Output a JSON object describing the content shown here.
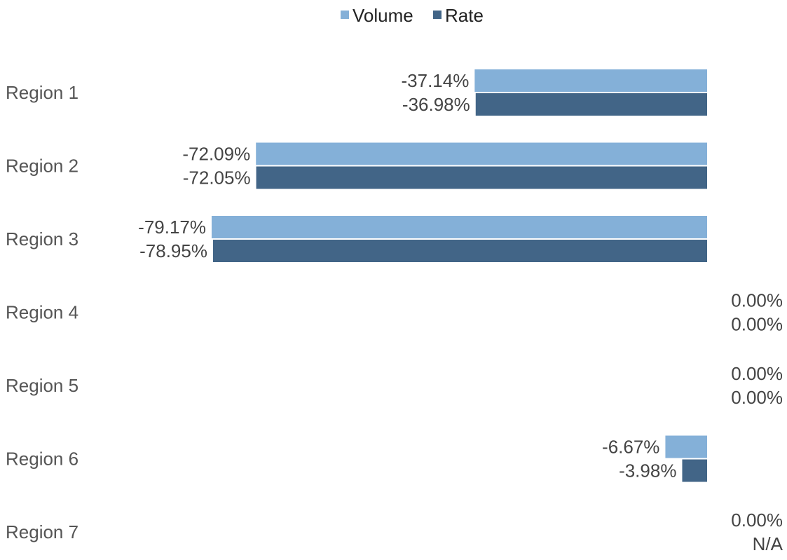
{
  "chart_data": {
    "type": "bar",
    "orientation": "horizontal",
    "categories": [
      "Region 1",
      "Region 2",
      "Region 3",
      "Region 4",
      "Region 5",
      "Region 6",
      "Region 7"
    ],
    "series": [
      {
        "name": "Volume",
        "color": "#84b0d8",
        "values": [
          -37.14,
          -72.09,
          -79.17,
          0,
          0,
          -6.67,
          0
        ],
        "labels": [
          "-37.14%",
          "-72.09%",
          "-79.17%",
          "0.00%",
          "0.00%",
          "-6.67%",
          "0.00%"
        ]
      },
      {
        "name": "Rate",
        "color": "#426587",
        "values": [
          -36.98,
          -72.05,
          -78.95,
          0,
          0,
          -3.98,
          null
        ],
        "labels": [
          "-36.98%",
          "-72.05%",
          "-78.95%",
          "0.00%",
          "0.00%",
          "-3.98%",
          "N/A"
        ]
      }
    ],
    "legend_position": "top-center",
    "grid": false,
    "xlim": [
      -79.17,
      0
    ]
  }
}
